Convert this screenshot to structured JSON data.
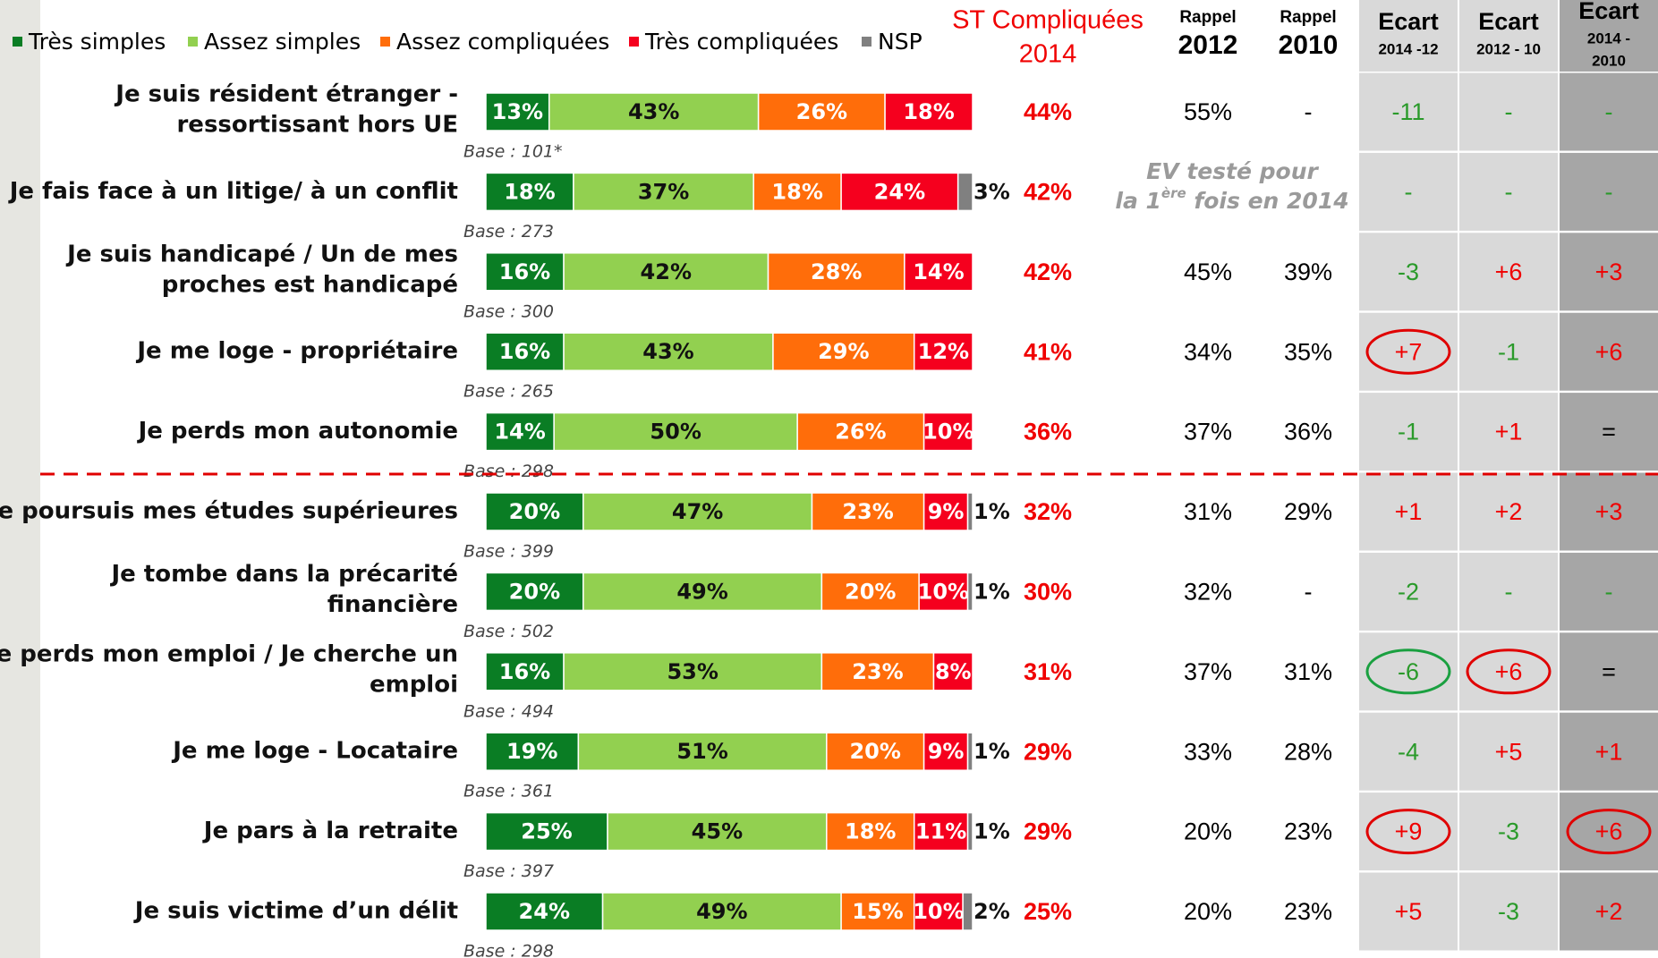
{
  "chart_data": {
    "type": "bar",
    "orientation": "horizontal",
    "stacked": true,
    "xlim": [
      0,
      100
    ],
    "categories": [
      [
        "Je suis résident étranger -",
        "ressortissant hors UE"
      ],
      [
        "Je fais face à un litige/ à un conflit"
      ],
      [
        "Je suis handicapé / Un de mes",
        "proches est handicapé"
      ],
      [
        "Je me loge - propriétaire"
      ],
      [
        "Je perds mon autonomie"
      ],
      [
        "Je poursuis mes études supérieures"
      ],
      [
        "Je tombe dans la précarité",
        "financière"
      ],
      [
        "Je perds mon emploi / Je cherche un",
        "emploi"
      ],
      [
        "Je me loge - Locataire"
      ],
      [
        "Je pars à la retraite"
      ],
      [
        "Je suis victime d’un délit"
      ]
    ],
    "bases": [
      "Base : 101*",
      "Base : 273",
      "Base : 300",
      "Base : 265",
      "Base : 298",
      "Base : 399",
      "Base : 502",
      "Base : 494",
      "Base : 361",
      "Base : 397",
      "Base : 298"
    ],
    "series": [
      {
        "name": "Très simples",
        "color": "#0a7d24",
        "values": [
          13,
          18,
          16,
          16,
          14,
          20,
          20,
          16,
          19,
          25,
          24
        ],
        "value_labels": [
          "13%",
          "18%",
          "16%",
          "16%",
          "14%",
          "20%",
          "20%",
          "16%",
          "19%",
          "25%",
          "24%"
        ]
      },
      {
        "name": "Assez simples",
        "color": "#92d050",
        "values": [
          43,
          37,
          42,
          43,
          50,
          47,
          49,
          53,
          51,
          45,
          49
        ],
        "value_labels": [
          "43%",
          "37%",
          "42%",
          "43%",
          "50%",
          "47%",
          "49%",
          "53%",
          "51%",
          "45%",
          "49%"
        ]
      },
      {
        "name": "Assez compliquées",
        "color": "#ff6d0a",
        "values": [
          26,
          18,
          28,
          29,
          26,
          23,
          20,
          23,
          20,
          18,
          15
        ],
        "value_labels": [
          "26%",
          "18%",
          "28%",
          "29%",
          "26%",
          "23%",
          "20%",
          "23%",
          "20%",
          "18%",
          "15%"
        ]
      },
      {
        "name": "Très compliquées",
        "color": "#f5001e",
        "values": [
          18,
          24,
          14,
          12,
          10,
          9,
          10,
          8,
          9,
          11,
          10
        ],
        "value_labels": [
          "18%",
          "24%",
          "14%",
          "12%",
          "10%",
          "9%",
          "10%",
          "8%",
          "9%",
          "11%",
          "10%"
        ]
      },
      {
        "name": "NSP",
        "color": "#808080",
        "values": [
          null,
          3,
          null,
          null,
          null,
          1,
          1,
          null,
          1,
          1,
          2
        ],
        "value_labels": [
          null,
          "3%",
          null,
          null,
          null,
          "1%",
          "1%",
          null,
          "1%",
          "1%",
          "2%"
        ]
      }
    ],
    "columns": [
      {
        "header": [
          "ST Compliquées",
          "2014"
        ],
        "values": [
          "44%",
          "42%",
          "42%",
          "41%",
          "36%",
          "32%",
          "30%",
          "31%",
          "29%",
          "29%",
          "25%"
        ]
      },
      {
        "header": [
          "Rappel",
          "2012"
        ],
        "values": [
          "55%",
          null,
          "45%",
          "34%",
          "37%",
          "31%",
          "32%",
          "37%",
          "33%",
          "20%",
          "20%"
        ]
      },
      {
        "header": [
          "Rappel",
          "2010"
        ],
        "values": [
          "-",
          null,
          "39%",
          "35%",
          "36%",
          "29%",
          "-",
          "31%",
          "28%",
          "23%",
          "23%"
        ]
      },
      {
        "header": [
          "Ecart",
          "2014 -12"
        ],
        "values": [
          "-11",
          "-",
          "-3",
          "+7",
          "-1",
          "+1",
          "-2",
          "-6",
          "-4",
          "+9",
          "+5"
        ]
      },
      {
        "header": [
          "Ecart",
          "2012 - 10"
        ],
        "values": [
          "-",
          "-",
          "+6",
          "-1",
          "+1",
          "+2",
          "-",
          "+6",
          "+5",
          "-3",
          "-3"
        ]
      },
      {
        "header": [
          "Ecart",
          "2014 -",
          "2010"
        ],
        "values": [
          "-",
          "-",
          "+3",
          "+6",
          "=",
          "+3",
          "-",
          "=",
          "+1",
          "+6",
          "+2"
        ]
      }
    ],
    "note": {
      "line1": "EV testé pour",
      "line2_start": "la 1",
      "line2_sup": "ère",
      "line2_end": " fois en 2014"
    }
  }
}
